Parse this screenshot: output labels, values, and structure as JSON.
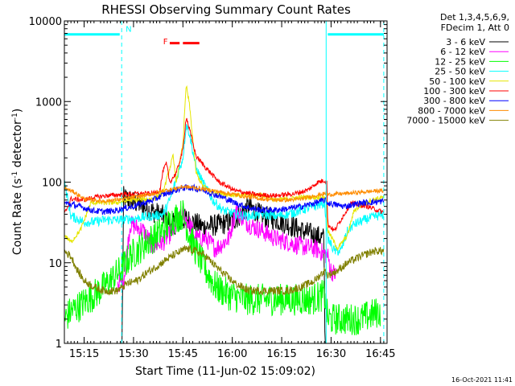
{
  "chart_data": {
    "type": "line",
    "title": "RHESSI Observing Summary Count Rates",
    "xlabel": "Start Time (11-Jun-02 15:09:02)",
    "ylabel": "Count Rate (s⁻¹ detector⁻¹)",
    "ylabel_parts": {
      "main": "Count Rate (s",
      "sup1": "-1",
      "mid": " detector",
      "sup2": "-1",
      "end": ")"
    },
    "yscale": "log",
    "xlim": [
      0,
      98
    ],
    "ylim": [
      1,
      10000
    ],
    "x_unit": "minutes after 15:09:02",
    "x_ticks": [
      {
        "x": 6,
        "label": "15:15"
      },
      {
        "x": 21,
        "label": "15:30"
      },
      {
        "x": 36,
        "label": "15:45"
      },
      {
        "x": 51,
        "label": "16:00"
      },
      {
        "x": 66,
        "label": "16:15"
      },
      {
        "x": 81,
        "label": "16:30"
      },
      {
        "x": 96,
        "label": "16:45"
      }
    ],
    "y_ticks": [
      {
        "y": 1,
        "label": "1"
      },
      {
        "y": 10,
        "label": "10"
      },
      {
        "y": 100,
        "label": "100"
      },
      {
        "y": 1000,
        "label": "1000"
      },
      {
        "y": 10000,
        "label": "10000"
      }
    ],
    "legend_header": [
      "Det 1,3,4,5,6,9,",
      "FDecim 1, Att 0"
    ],
    "legend_position": "right",
    "date_stamp": "16-Oct-2021 11:41",
    "annotations": [
      {
        "text": "N",
        "x": 18.6,
        "y": 8000,
        "color": "#00ffff",
        "kind": "night",
        "bars": [
          [
            0,
            16.8,
            6800
          ],
          [
            80,
            97,
            6800
          ]
        ]
      },
      {
        "text": "F",
        "x": 30,
        "y": 5600,
        "color": "#ff0000",
        "kind": "flare",
        "bars": [
          [
            32,
            35,
            5300
          ],
          [
            36,
            41,
            5300
          ]
        ]
      }
    ],
    "markers": [
      {
        "x": 0,
        "color": "#00ffff",
        "style": "solid"
      },
      {
        "x": 17.4,
        "color": "#00ffff",
        "style": "dashed"
      },
      {
        "x": 79.5,
        "color": "#00ffff",
        "style": "solid"
      },
      {
        "x": 97,
        "color": "#00ffff",
        "style": "dashed"
      }
    ],
    "series": [
      {
        "name": "3 - 6 keV",
        "color": "#000000",
        "noise": 0.14,
        "points": [
          [
            17.5,
            1
          ],
          [
            18,
            65
          ],
          [
            22,
            55
          ],
          [
            26,
            45
          ],
          [
            30,
            38
          ],
          [
            33,
            30
          ],
          [
            37,
            35
          ],
          [
            42,
            28
          ],
          [
            48,
            30
          ],
          [
            52,
            35
          ],
          [
            56,
            50
          ],
          [
            60,
            38
          ],
          [
            64,
            35
          ],
          [
            68,
            30
          ],
          [
            72,
            25
          ],
          [
            76,
            22
          ],
          [
            78.8,
            20
          ],
          [
            79.2,
            1
          ],
          [
            82,
            1
          ]
        ]
      },
      {
        "name": "6 - 12 keV",
        "color": "#ff00ff",
        "noise": 0.12,
        "points": [
          [
            16.2,
            5.5
          ],
          [
            18,
            6
          ],
          [
            20,
            30
          ],
          [
            24,
            25
          ],
          [
            27,
            16
          ],
          [
            30,
            18
          ],
          [
            33,
            25
          ],
          [
            36,
            40
          ],
          [
            38,
            30
          ],
          [
            40,
            20
          ],
          [
            43,
            20
          ],
          [
            46,
            15
          ],
          [
            50,
            20
          ],
          [
            52,
            45
          ],
          [
            56,
            30
          ],
          [
            60,
            25
          ],
          [
            64,
            20
          ],
          [
            68,
            18
          ],
          [
            72,
            16
          ],
          [
            76,
            15
          ],
          [
            79,
            13
          ],
          [
            80,
            12
          ],
          [
            81,
            8
          ],
          [
            82.5,
            7
          ]
        ]
      },
      {
        "name": "12 - 25 keV",
        "color": "#00ff00",
        "noise": 0.2,
        "points": [
          [
            0,
            2
          ],
          [
            2,
            2.5
          ],
          [
            5,
            3
          ],
          [
            7,
            3.5
          ],
          [
            9,
            4
          ],
          [
            12,
            5
          ],
          [
            14,
            6
          ],
          [
            17,
            8
          ],
          [
            20,
            12
          ],
          [
            25,
            18
          ],
          [
            28,
            22
          ],
          [
            31,
            28
          ],
          [
            33,
            35
          ],
          [
            36,
            40
          ],
          [
            38,
            22
          ],
          [
            40,
            14
          ],
          [
            43,
            8
          ],
          [
            46,
            5
          ],
          [
            50,
            4
          ],
          [
            55,
            3.5
          ],
          [
            60,
            3.5
          ],
          [
            65,
            3.5
          ],
          [
            70,
            3.5
          ],
          [
            75,
            3.5
          ],
          [
            79,
            4
          ],
          [
            80,
            2
          ],
          [
            85,
            2
          ],
          [
            90,
            2
          ],
          [
            96,
            2.5
          ]
        ]
      },
      {
        "name": "25 - 50 keV",
        "color": "#00ffff",
        "noise": 0.06,
        "points": [
          [
            0,
            100
          ],
          [
            2,
            38
          ],
          [
            6,
            32
          ],
          [
            9,
            32
          ],
          [
            12,
            34
          ],
          [
            17,
            34
          ],
          [
            20,
            35
          ],
          [
            27,
            38
          ],
          [
            30,
            40
          ],
          [
            32,
            60
          ],
          [
            34,
            110
          ],
          [
            36,
            200
          ],
          [
            37,
            520
          ],
          [
            38,
            400
          ],
          [
            40,
            150
          ],
          [
            42,
            100
          ],
          [
            45,
            60
          ],
          [
            48,
            45
          ],
          [
            52,
            40
          ],
          [
            56,
            38
          ],
          [
            60,
            40
          ],
          [
            64,
            38
          ],
          [
            68,
            40
          ],
          [
            72,
            45
          ],
          [
            76,
            50
          ],
          [
            79,
            55
          ],
          [
            80,
            20
          ],
          [
            82,
            14
          ],
          [
            84,
            14
          ],
          [
            86,
            25
          ],
          [
            88,
            30
          ],
          [
            92,
            35
          ],
          [
            97,
            40
          ]
        ]
      },
      {
        "name": "50 - 100 keV",
        "color": "#e6e600",
        "noise": 0.03,
        "points": [
          [
            0,
            22
          ],
          [
            2,
            18
          ],
          [
            5,
            26
          ],
          [
            8,
            55
          ],
          [
            10,
            56
          ],
          [
            13,
            55
          ],
          [
            16,
            56
          ],
          [
            20,
            60
          ],
          [
            27,
            62
          ],
          [
            30,
            75
          ],
          [
            32,
            150
          ],
          [
            33,
            210
          ],
          [
            34,
            100
          ],
          [
            36,
            300
          ],
          [
            37,
            1600
          ],
          [
            38,
            900
          ],
          [
            40,
            130
          ],
          [
            42,
            90
          ],
          [
            45,
            75
          ],
          [
            50,
            70
          ],
          [
            56,
            68
          ],
          [
            60,
            70
          ],
          [
            64,
            60
          ],
          [
            68,
            62
          ],
          [
            72,
            65
          ],
          [
            78,
            65
          ],
          [
            79.5,
            65
          ],
          [
            80,
            25
          ],
          [
            83,
            15
          ],
          [
            86,
            22
          ],
          [
            88,
            45
          ],
          [
            93,
            60
          ],
          [
            97,
            65
          ]
        ]
      },
      {
        "name": "100 - 300 keV",
        "color": "#ff0000",
        "noise": 0.03,
        "points": [
          [
            0,
            40
          ],
          [
            2,
            62
          ],
          [
            6,
            60
          ],
          [
            9,
            65
          ],
          [
            13,
            68
          ],
          [
            17,
            70
          ],
          [
            22,
            72
          ],
          [
            27,
            72
          ],
          [
            29,
            80
          ],
          [
            30,
            140
          ],
          [
            31,
            170
          ],
          [
            32,
            100
          ],
          [
            34,
            130
          ],
          [
            36,
            250
          ],
          [
            37,
            650
          ],
          [
            38,
            450
          ],
          [
            40,
            210
          ],
          [
            43,
            150
          ],
          [
            47,
            100
          ],
          [
            52,
            78
          ],
          [
            58,
            70
          ],
          [
            64,
            68
          ],
          [
            70,
            72
          ],
          [
            74,
            80
          ],
          [
            77,
            100
          ],
          [
            79,
            105
          ],
          [
            79.7,
            100
          ],
          [
            80,
            30
          ],
          [
            82,
            25
          ],
          [
            85,
            40
          ],
          [
            87,
            55
          ],
          [
            92,
            50
          ],
          [
            97,
            42
          ]
        ]
      },
      {
        "name": "300 - 800 keV",
        "color": "#0000ff",
        "noise": 0.04,
        "points": [
          [
            0,
            55
          ],
          [
            3,
            52
          ],
          [
            6,
            48
          ],
          [
            9,
            44
          ],
          [
            12,
            43
          ],
          [
            15,
            44
          ],
          [
            18,
            47
          ],
          [
            21,
            50
          ],
          [
            24,
            55
          ],
          [
            27,
            60
          ],
          [
            30,
            70
          ],
          [
            33,
            78
          ],
          [
            36,
            85
          ],
          [
            39,
            85
          ],
          [
            42,
            80
          ],
          [
            45,
            72
          ],
          [
            48,
            65
          ],
          [
            52,
            55
          ],
          [
            56,
            48
          ],
          [
            60,
            45
          ],
          [
            64,
            45
          ],
          [
            68,
            47
          ],
          [
            72,
            50
          ],
          [
            76,
            55
          ],
          [
            79,
            60
          ],
          [
            80,
            55
          ],
          [
            85,
            50
          ],
          [
            90,
            55
          ],
          [
            97,
            58
          ]
        ]
      },
      {
        "name": "800 - 7000 keV",
        "color": "#ff8c00",
        "noise": 0.025,
        "points": [
          [
            0,
            85
          ],
          [
            3,
            75
          ],
          [
            6,
            62
          ],
          [
            9,
            60
          ],
          [
            12,
            58
          ],
          [
            15,
            60
          ],
          [
            18,
            62
          ],
          [
            21,
            65
          ],
          [
            24,
            68
          ],
          [
            27,
            72
          ],
          [
            30,
            78
          ],
          [
            33,
            82
          ],
          [
            36,
            88
          ],
          [
            40,
            85
          ],
          [
            44,
            80
          ],
          [
            48,
            75
          ],
          [
            52,
            70
          ],
          [
            56,
            65
          ],
          [
            60,
            62
          ],
          [
            64,
            60
          ],
          [
            68,
            60
          ],
          [
            72,
            62
          ],
          [
            76,
            68
          ],
          [
            79,
            72
          ],
          [
            80,
            70
          ],
          [
            85,
            72
          ],
          [
            90,
            75
          ],
          [
            95,
            78
          ],
          [
            97,
            78
          ]
        ]
      },
      {
        "name": "7000 - 15000 keV",
        "color": "#808000",
        "noise": 0.05,
        "points": [
          [
            0,
            14
          ],
          [
            2,
            12
          ],
          [
            4,
            8
          ],
          [
            6,
            6
          ],
          [
            9,
            5
          ],
          [
            12,
            4.5
          ],
          [
            16,
            4.5
          ],
          [
            19,
            5.5
          ],
          [
            22,
            6
          ],
          [
            25,
            7.5
          ],
          [
            28,
            9
          ],
          [
            31,
            11
          ],
          [
            34,
            13
          ],
          [
            37,
            15
          ],
          [
            40,
            14
          ],
          [
            43,
            12
          ],
          [
            46,
            9
          ],
          [
            49,
            7
          ],
          [
            52,
            5.5
          ],
          [
            56,
            4.5
          ],
          [
            60,
            4.5
          ],
          [
            64,
            4.5
          ],
          [
            68,
            4.5
          ],
          [
            72,
            5
          ],
          [
            76,
            6
          ],
          [
            79,
            8
          ],
          [
            80,
            7
          ],
          [
            83,
            8
          ],
          [
            86,
            10
          ],
          [
            90,
            12
          ],
          [
            94,
            14
          ],
          [
            97,
            14
          ]
        ]
      }
    ]
  }
}
